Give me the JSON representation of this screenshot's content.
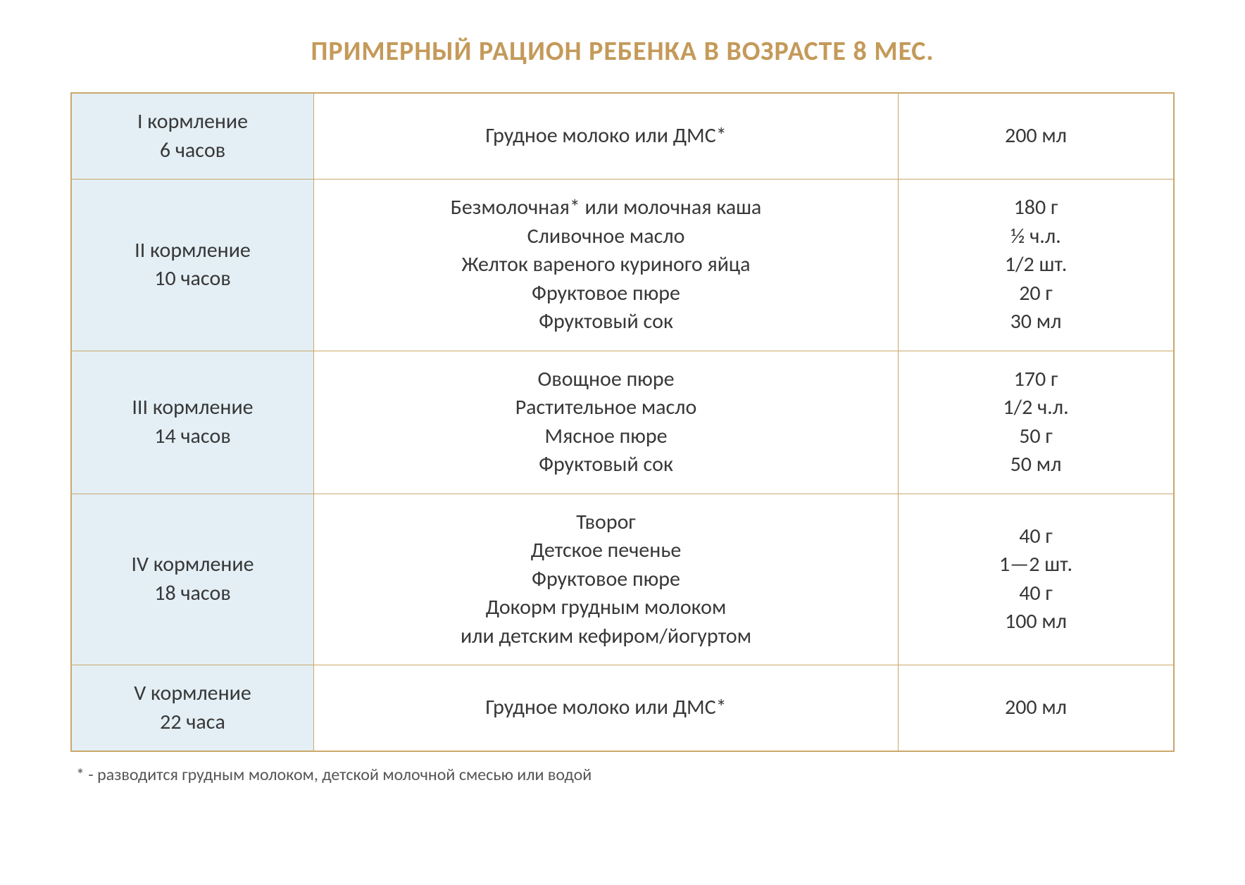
{
  "title": "ПРИМЕРНЫЙ РАЦИОН РЕБЕНКА В ВОЗРАСТЕ 8 МЕС.",
  "colors": {
    "title_color": "#c49a5a",
    "border_color": "#c9a86a",
    "time_bg": "#e3eff5",
    "text_color": "#383838",
    "page_bg": "#ffffff"
  },
  "typography": {
    "title_fontsize": 38,
    "cell_fontsize": 30,
    "footnote_fontsize": 24,
    "font_family": "Calibri"
  },
  "table": {
    "columns": [
      "time",
      "food",
      "amount"
    ],
    "column_widths_pct": [
      22,
      53,
      25
    ],
    "rows": [
      {
        "time": [
          "I кормление",
          "6 часов"
        ],
        "food": [
          "Грудное молоко или ДМС*"
        ],
        "amount": [
          "200 мл"
        ]
      },
      {
        "time": [
          "II кормление",
          "10 часов"
        ],
        "food": [
          "Безмолочная* или молочная каша",
          "Сливочное масло",
          "Желток вареного куриного яйца",
          "Фруктовое пюре",
          "Фруктовый сок"
        ],
        "amount": [
          "180 г",
          "½  ч.л.",
          "1/2 шт.",
          "20 г",
          "30 мл"
        ]
      },
      {
        "time": [
          "III кормление",
          "14 часов"
        ],
        "food": [
          "Овощное пюре",
          "Растительное масло",
          "Мясное пюре",
          "Фруктовый сок"
        ],
        "amount": [
          "170 г",
          "1/2 ч.л.",
          "50 г",
          "50 мл"
        ]
      },
      {
        "time": [
          "IV кормление",
          "18 часов"
        ],
        "food": [
          "Творог",
          "Детское печенье",
          "Фруктовое пюре",
          "Докорм грудным молоком",
          "или детским кефиром/йогуртом"
        ],
        "amount": [
          "40 г",
          "1—2 шт.",
          "40 г",
          "100 мл"
        ]
      },
      {
        "time": [
          "V кормление",
          "22 часа"
        ],
        "food": [
          "Грудное молоко или ДМС*"
        ],
        "amount": [
          "200 мл"
        ]
      }
    ]
  },
  "footnote": "* - разводится грудным молоком, детской молочной смесью или водой"
}
